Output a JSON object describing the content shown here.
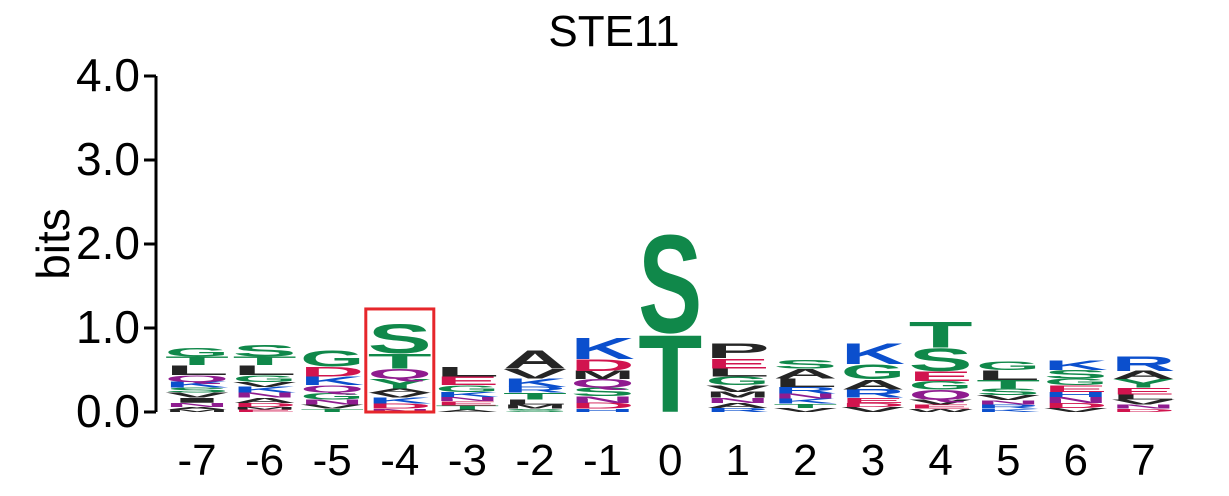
{
  "chart_data": {
    "type": "sequence-logo",
    "title": "STE11",
    "ylabel": "bits",
    "ylim": [
      0,
      4
    ],
    "yticks": [
      "0.0",
      "1.0",
      "2.0",
      "3.0",
      "4.0"
    ],
    "ytick_values": [
      0,
      1,
      2,
      3,
      4
    ],
    "positions": [
      "-7",
      "-6",
      "-5",
      "-4",
      "-3",
      "-2",
      "-1",
      "0",
      "1",
      "2",
      "3",
      "4",
      "5",
      "6",
      "7"
    ],
    "highlighted_position": "-4",
    "colors": {
      "S": "#10884a",
      "T": "#10884a",
      "G": "#10884a",
      "K": "#0b4fcd",
      "R": "#0b4fcd",
      "H": "#0b4fcd",
      "D": "#d1144e",
      "E": "#d1144e",
      "Q": "#8f1c8f",
      "N": "#8f1c8f",
      "A": "#252525",
      "V": "#252525",
      "L": "#252525",
      "I": "#252525",
      "M": "#252525",
      "P": "#252525",
      "F": "#252525",
      "W": "#252525",
      "Y": "#10884a",
      "C": "#10884a",
      "highlight": "#e6262b"
    },
    "stacks": [
      [
        [
          "M",
          0.03
        ],
        [
          "A",
          0.03
        ],
        [
          "N",
          0.05
        ],
        [
          "I",
          0.06
        ],
        [
          "V",
          0.06
        ],
        [
          "S",
          0.06
        ],
        [
          "K",
          0.07
        ],
        [
          "Q",
          0.08
        ],
        [
          "L",
          0.12
        ],
        [
          "T",
          0.1
        ],
        [
          "G",
          0.1
        ]
      ],
      [
        [
          "E",
          0.03
        ],
        [
          "M",
          0.03
        ],
        [
          "D",
          0.05
        ],
        [
          "A",
          0.06
        ],
        [
          "N",
          0.06
        ],
        [
          "K",
          0.07
        ],
        [
          "V",
          0.06
        ],
        [
          "G",
          0.08
        ],
        [
          "L",
          0.12
        ],
        [
          "T",
          0.1
        ],
        [
          "S",
          0.14
        ]
      ],
      [
        [
          "T",
          0.04
        ],
        [
          "V",
          0.05
        ],
        [
          "N",
          0.06
        ],
        [
          "G",
          0.08
        ],
        [
          "Q",
          0.09
        ],
        [
          "K",
          0.1
        ],
        [
          "D",
          0.12
        ],
        [
          "G",
          0.2
        ]
      ],
      [
        [
          "N",
          0.04
        ],
        [
          "D",
          0.06
        ],
        [
          "K",
          0.07
        ],
        [
          "V",
          0.06
        ],
        [
          "A",
          0.05
        ],
        [
          "Y",
          0.12
        ],
        [
          "Q",
          0.12
        ],
        [
          "T",
          0.18
        ],
        [
          "S",
          0.36
        ]
      ],
      [
        [
          "A",
          0.03
        ],
        [
          "T",
          0.05
        ],
        [
          "E",
          0.05
        ],
        [
          "N",
          0.05
        ],
        [
          "K",
          0.06
        ],
        [
          "G",
          0.08
        ],
        [
          "E",
          0.1
        ],
        [
          "L",
          0.12
        ]
      ],
      [
        [
          "S",
          0.04
        ],
        [
          "M",
          0.05
        ],
        [
          "L",
          0.06
        ],
        [
          "T",
          0.08
        ],
        [
          "R",
          0.07
        ],
        [
          "K",
          0.1
        ],
        [
          "V",
          0.12
        ],
        [
          "A",
          0.22
        ]
      ],
      [
        [
          "H",
          0.04
        ],
        [
          "D",
          0.07
        ],
        [
          "N",
          0.08
        ],
        [
          "S",
          0.1
        ],
        [
          "Q",
          0.1
        ],
        [
          "M",
          0.1
        ],
        [
          "D",
          0.14
        ],
        [
          "K",
          0.26
        ]
      ],
      [
        [
          "T",
          0.95
        ],
        [
          "S",
          1.2
        ]
      ],
      [
        [
          "R",
          0.05
        ],
        [
          "A",
          0.06
        ],
        [
          "N",
          0.06
        ],
        [
          "M",
          0.07
        ],
        [
          "V",
          0.08
        ],
        [
          "G",
          0.1
        ],
        [
          "L",
          0.1
        ],
        [
          "E",
          0.12
        ],
        [
          "P",
          0.18
        ]
      ],
      [
        [
          "V",
          0.05
        ],
        [
          "T",
          0.05
        ],
        [
          "K",
          0.06
        ],
        [
          "N",
          0.06
        ],
        [
          "R",
          0.08
        ],
        [
          "L",
          0.1
        ],
        [
          "A",
          0.12
        ],
        [
          "S",
          0.1
        ]
      ],
      [
        [
          "V",
          0.06
        ],
        [
          "D",
          0.05
        ],
        [
          "E",
          0.06
        ],
        [
          "R",
          0.1
        ],
        [
          "A",
          0.12
        ],
        [
          "G",
          0.18
        ],
        [
          "K",
          0.25
        ]
      ],
      [
        [
          "W",
          0.04
        ],
        [
          "E",
          0.05
        ],
        [
          "V",
          0.06
        ],
        [
          "Q",
          0.12
        ],
        [
          "G",
          0.1
        ],
        [
          "E",
          0.12
        ],
        [
          "S",
          0.28
        ],
        [
          "T",
          0.32
        ]
      ],
      [
        [
          "K",
          0.04
        ],
        [
          "R",
          0.05
        ],
        [
          "N",
          0.05
        ],
        [
          "V",
          0.06
        ],
        [
          "S",
          0.08
        ],
        [
          "T",
          0.1
        ],
        [
          "L",
          0.12
        ],
        [
          "G",
          0.1
        ]
      ],
      [
        [
          "V",
          0.05
        ],
        [
          "D",
          0.06
        ],
        [
          "N",
          0.07
        ],
        [
          "H",
          0.06
        ],
        [
          "E",
          0.08
        ],
        [
          "G",
          0.08
        ],
        [
          "S",
          0.1
        ],
        [
          "K",
          0.12
        ]
      ],
      [
        [
          "D",
          0.04
        ],
        [
          "N",
          0.05
        ],
        [
          "V",
          0.06
        ],
        [
          "L",
          0.06
        ],
        [
          "E",
          0.08
        ],
        [
          "Y",
          0.1
        ],
        [
          "A",
          0.1
        ],
        [
          "R",
          0.18
        ]
      ]
    ]
  }
}
